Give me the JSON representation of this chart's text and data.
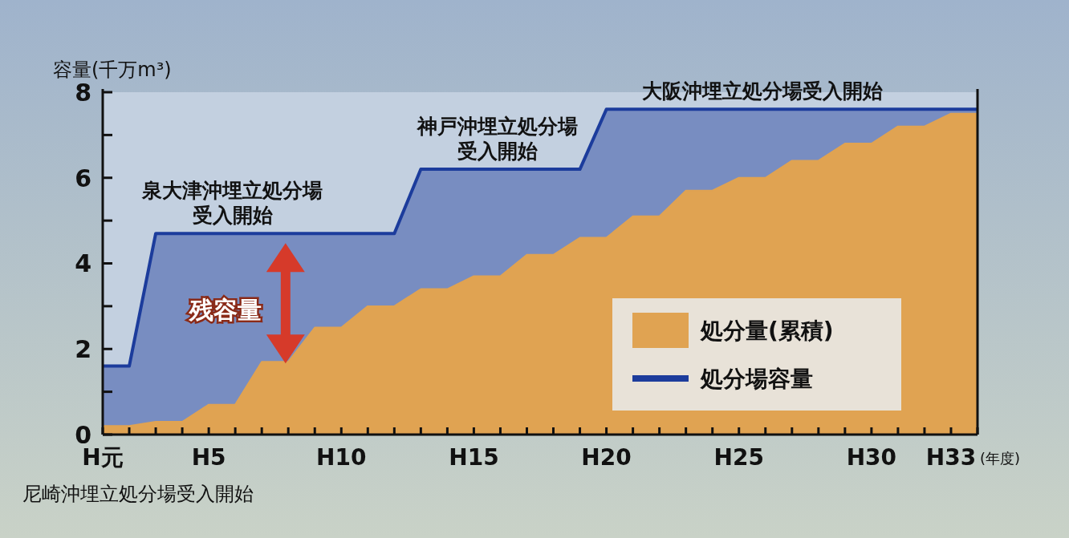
{
  "chart_data": {
    "type": "area",
    "ylabel": "容量(千万m³)",
    "xlabel": "(年度)",
    "categories": [
      "H元",
      null,
      null,
      null,
      "H5",
      null,
      null,
      null,
      null,
      "H10",
      null,
      null,
      null,
      null,
      "H15",
      null,
      null,
      null,
      null,
      "H20",
      null,
      null,
      null,
      null,
      "H25",
      null,
      null,
      null,
      null,
      "H30",
      null,
      null,
      "H33",
      null
    ],
    "ylim": [
      0,
      8
    ],
    "yticks": [
      0,
      {
        "value": 1,
        "label": null
      },
      2,
      {
        "value": 3,
        "label": null
      },
      4,
      {
        "value": 5,
        "label": null
      },
      6,
      {
        "value": 7,
        "label": null
      },
      8
    ],
    "legend": "bottom right",
    "series": [
      {
        "name": "処分量(累積)",
        "color": "#e0a352",
        "values": [
          0.2,
          0.2,
          0.3,
          0.3,
          0.7,
          0.7,
          1.7,
          1.7,
          2.5,
          2.5,
          3.0,
          3.0,
          3.4,
          3.4,
          3.7,
          3.7,
          4.2,
          4.2,
          4.6,
          4.6,
          5.1,
          5.1,
          5.7,
          5.7,
          6.0,
          6.0,
          6.4,
          6.4,
          6.8,
          6.8,
          7.2,
          7.2,
          7.5,
          7.5
        ]
      },
      {
        "name": "処分場容量",
        "color": "#1c3c9c",
        "values": [
          1.6,
          1.6,
          4.7,
          4.7,
          4.7,
          4.7,
          4.7,
          4.7,
          4.7,
          4.7,
          4.7,
          4.7,
          6.2,
          6.2,
          6.2,
          6.2,
          6.2,
          6.2,
          6.2,
          7.6,
          7.6,
          7.6,
          7.6,
          7.6,
          7.6,
          7.6,
          7.6,
          7.6,
          7.6,
          7.6,
          7.6,
          7.6,
          7.6,
          7.6
        ]
      }
    ],
    "annotations": [
      {
        "text": "泉大津沖埋立処分場受入開始",
        "x": "H5",
        "y": 4.7
      },
      {
        "text": "神戸沖埋立処分場受入開始",
        "x": "H15",
        "y": 6.2
      },
      {
        "text": "大阪沖埋立処分場受入開始",
        "x": "H25",
        "y": 7.6
      },
      "残容量",
      "尼崎沖埋立処分場受入開始"
    ]
  }
}
